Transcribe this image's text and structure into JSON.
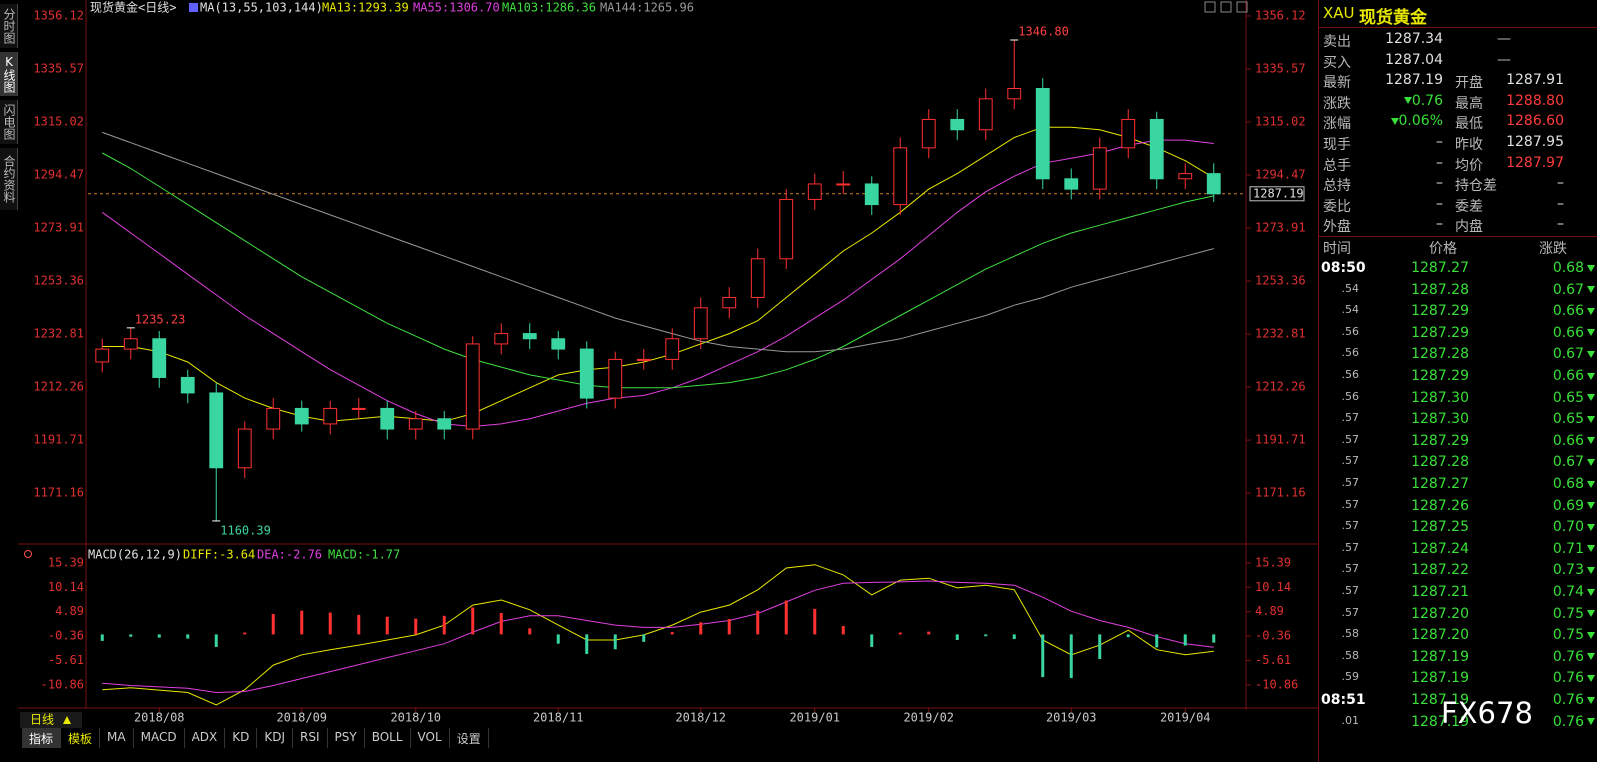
{
  "sidebar": {
    "tabs": [
      "分时图",
      "K线图",
      "闪电图",
      "合约资料"
    ]
  },
  "chart_data": {
    "type": "candlestick",
    "title": "现货黄金<日线>",
    "indicator_label": "MA(13,55,103,144)",
    "categories": [
      null,
      null,
      "2018/08",
      null,
      null,
      null,
      null,
      "2018/09",
      null,
      null,
      null,
      "2018/10",
      null,
      null,
      null,
      null,
      "2018/11",
      null,
      null,
      null,
      null,
      "2018/12",
      null,
      null,
      null,
      "2019/01",
      null,
      null,
      null,
      "2019/02",
      null,
      null,
      null,
      null,
      "2019/03",
      null,
      null,
      null,
      "2019/04",
      null
    ],
    "open": [
      1222,
      1227,
      1231,
      1216,
      1210,
      1181,
      1196,
      1204,
      1198,
      1204,
      1204,
      1196,
      1200,
      1196,
      1229,
      1233,
      1231,
      1227,
      1208,
      1223,
      1223,
      1231,
      1243,
      1247,
      1262,
      1285,
      1291,
      1291,
      1283,
      1305,
      1316,
      1312,
      1324,
      1328,
      1293,
      1289,
      1305,
      1316,
      1293,
      1295
    ],
    "high": [
      1231,
      1235.23,
      1234,
      1219,
      1214,
      1199,
      1208,
      1207,
      1207,
      1208,
      1207,
      1203,
      1203,
      1232,
      1237,
      1237,
      1234,
      1230,
      1226,
      1227,
      1235,
      1247,
      1251,
      1266,
      1289,
      1295,
      1296,
      1294,
      1309,
      1320,
      1320,
      1328,
      1346.8,
      1332,
      1297,
      1309,
      1320,
      1319,
      1299,
      1299
    ],
    "low": [
      1218,
      1223,
      1212,
      1206,
      1160.39,
      1177,
      1192,
      1195,
      1194,
      1200,
      1192,
      1192,
      1192,
      1192,
      1225,
      1227,
      1223,
      1204,
      1204,
      1219,
      1219,
      1227,
      1239,
      1243,
      1258,
      1281,
      1287,
      1279,
      1279,
      1301,
      1308,
      1308,
      1320,
      1289,
      1285,
      1285,
      1301,
      1289,
      1289,
      1284
    ],
    "close": [
      1227,
      1231,
      1216,
      1210,
      1181,
      1196,
      1204,
      1198,
      1204,
      1204,
      1196,
      1200,
      1196,
      1229,
      1233,
      1231,
      1227,
      1208,
      1223,
      1223,
      1231,
      1243,
      1247,
      1262,
      1285,
      1291,
      1291,
      1283,
      1305,
      1316,
      1312,
      1324,
      1328,
      1293,
      1289,
      1305,
      1316,
      1293,
      1295,
      1287.19
    ],
    "up_color": "#ff3030",
    "down_color": "#3ad6a2",
    "ylim": [
      1153.0,
      1359.2
    ],
    "yticks": [
      1356.12,
      1335.57,
      1315.02,
      1294.47,
      1273.91,
      1253.36,
      1232.81,
      1212.26,
      1191.71,
      1171.16
    ],
    "series": [
      {
        "name": "MA13:1293.39",
        "color": "#e8e800",
        "values": [
          1228,
          1228,
          1226,
          1222,
          1214,
          1208,
          1204,
          1201,
          1199,
          1200,
          1201,
          1200,
          1199,
          1202,
          1207,
          1212,
          1217,
          1219,
          1220,
          1222,
          1225,
          1229,
          1233,
          1238,
          1247,
          1256,
          1265,
          1272,
          1280,
          1289,
          1295,
          1302,
          1309,
          1313,
          1313,
          1312,
          1309,
          1305,
          1300,
          1293.39
        ]
      },
      {
        "name": "MA55:1306.70",
        "color": "#e040e0",
        "values": [
          1280,
          1272,
          1264,
          1256,
          1248,
          1240,
          1233,
          1226,
          1219,
          1213,
          1207,
          1202,
          1198,
          1197,
          1198,
          1200,
          1203,
          1206,
          1208,
          1209,
          1212,
          1216,
          1221,
          1226,
          1232,
          1239,
          1246,
          1254,
          1262,
          1271,
          1280,
          1288,
          1294,
          1299,
          1301,
          1303,
          1306,
          1308,
          1308,
          1306.7
        ]
      },
      {
        "name": "MA103:1286.36",
        "color": "#40e040",
        "values": [
          1303,
          1297,
          1290,
          1283,
          1276,
          1269,
          1262,
          1255,
          1249,
          1243,
          1237,
          1232,
          1227,
          1223,
          1220,
          1217,
          1215,
          1213,
          1212,
          1212,
          1212,
          1213,
          1214,
          1216,
          1219,
          1223,
          1228,
          1234,
          1240,
          1246,
          1252,
          1258,
          1263,
          1268,
          1272,
          1275,
          1278,
          1281,
          1284,
          1286.36
        ]
      },
      {
        "name": "MA144:1265.96",
        "color": "#999999",
        "values": [
          1311,
          1307,
          1303,
          1299,
          1295,
          1291,
          1287,
          1283,
          1279,
          1275,
          1271,
          1267,
          1263,
          1259,
          1255,
          1251,
          1247,
          1243,
          1239,
          1236,
          1233,
          1230,
          1228,
          1227,
          1226,
          1226,
          1227,
          1229,
          1231,
          1234,
          1237,
          1240,
          1244,
          1247,
          1251,
          1254,
          1257,
          1260,
          1263,
          1265.96
        ]
      }
    ],
    "annotations": [
      {
        "value": 1346.8,
        "label": "1346.80"
      },
      {
        "value": 1235.23,
        "label": "1235.23"
      },
      {
        "value": 1160.39,
        "label": "1160.39"
      }
    ],
    "macd": {
      "title": "MACD(26,12,9)",
      "ylim": [
        -15.2,
        18.6
      ],
      "yticks": [
        15.39,
        10.14,
        4.89,
        -0.36,
        -5.61,
        -10.86
      ],
      "series": [
        {
          "name": "DIFF:-3.64",
          "color": "#e8e800",
          "values": [
            -11.9,
            -11.5,
            -12.0,
            -12.5,
            -15.2,
            -11.9,
            -6.6,
            -4.4,
            -3.3,
            -2.3,
            -1.2,
            -0.1,
            2.0,
            6.3,
            7.4,
            5.3,
            2.0,
            -1.2,
            -1.2,
            -0.1,
            2.0,
            4.8,
            6.3,
            9.6,
            14.3,
            15.0,
            12.8,
            8.5,
            11.7,
            12.1,
            10.0,
            10.6,
            9.6,
            -1.2,
            -4.4,
            -2.3,
            0.9,
            -3.3,
            -4.4,
            -3.64
          ]
        },
        {
          "name": "DEA:-2.76",
          "color": "#e040e0",
          "values": [
            -10.5,
            -11.0,
            -11.3,
            -11.6,
            -12.5,
            -12.3,
            -11.0,
            -9.5,
            -8.0,
            -6.5,
            -5.0,
            -3.5,
            -2.0,
            0.5,
            2.8,
            4.0,
            4.0,
            3.0,
            2.0,
            1.5,
            1.5,
            2.2,
            3.0,
            4.5,
            7.0,
            9.5,
            11.0,
            11.2,
            11.3,
            11.5,
            11.2,
            11.0,
            10.6,
            8.0,
            5.0,
            3.0,
            1.5,
            -0.5,
            -2.0,
            -2.76
          ]
        },
        {
          "name": "MACD:-1.77",
          "color": "#40e040",
          "type": "bar",
          "values": [
            -1.4,
            -0.5,
            -0.7,
            -0.9,
            -2.7,
            0.4,
            4.4,
            5.1,
            4.7,
            4.2,
            3.8,
            3.4,
            4.0,
            5.8,
            4.6,
            1.3,
            -2.0,
            -4.2,
            -3.2,
            -1.6,
            0.5,
            2.6,
            3.3,
            5.1,
            7.3,
            5.5,
            1.8,
            -2.7,
            0.4,
            0.6,
            -1.2,
            -0.4,
            -1.0,
            -9.2,
            -9.4,
            -5.3,
            -0.6,
            -2.8,
            -2.4,
            -1.77
          ]
        }
      ]
    }
  },
  "period": "日线",
  "toolbar": [
    "指标",
    "模板",
    "MA",
    "MACD",
    "ADX",
    "KD",
    "KDJ",
    "RSI",
    "PSY",
    "BOLL",
    "VOL",
    "设置"
  ],
  "quote": {
    "code": "XAU",
    "name": "现货黄金",
    "rows": [
      [
        "卖出",
        "1287.34",
        "—"
      ],
      [
        "买入",
        "1287.04",
        "—"
      ],
      [
        "最新",
        "1287.19",
        "开盘",
        "1287.91"
      ],
      [
        "涨跌",
        "0.76",
        "最高",
        "1288.80"
      ],
      [
        "涨幅",
        "0.06%",
        "最低",
        "1286.60"
      ],
      [
        "现手",
        "–",
        "昨收",
        "1287.95"
      ],
      [
        "总手",
        "–",
        "均价",
        "1287.97"
      ],
      [
        "总持",
        "–",
        "持仓差",
        "–"
      ],
      [
        "委比",
        "–",
        "委差",
        "–"
      ],
      [
        "外盘",
        "–",
        "内盘",
        "–"
      ]
    ]
  },
  "ticks": {
    "header": [
      "时间",
      "价格",
      "涨跌"
    ],
    "rows": [
      [
        "08:50",
        "1287.27",
        "0.68"
      ],
      [
        ".54",
        "1287.28",
        "0.67"
      ],
      [
        ".54",
        "1287.29",
        "0.66"
      ],
      [
        ".56",
        "1287.29",
        "0.66"
      ],
      [
        ".56",
        "1287.28",
        "0.67"
      ],
      [
        ".56",
        "1287.29",
        "0.66"
      ],
      [
        ".56",
        "1287.30",
        "0.65"
      ],
      [
        ".57",
        "1287.30",
        "0.65"
      ],
      [
        ".57",
        "1287.29",
        "0.66"
      ],
      [
        ".57",
        "1287.28",
        "0.67"
      ],
      [
        ".57",
        "1287.27",
        "0.68"
      ],
      [
        ".57",
        "1287.26",
        "0.69"
      ],
      [
        ".57",
        "1287.25",
        "0.70"
      ],
      [
        ".57",
        "1287.24",
        "0.71"
      ],
      [
        ".57",
        "1287.22",
        "0.73"
      ],
      [
        ".57",
        "1287.21",
        "0.74"
      ],
      [
        ".57",
        "1287.20",
        "0.75"
      ],
      [
        ".58",
        "1287.20",
        "0.75"
      ],
      [
        ".58",
        "1287.19",
        "0.76"
      ],
      [
        ".59",
        "1287.19",
        "0.76"
      ],
      [
        "08:51",
        "1287.19",
        "0.76"
      ],
      [
        ".01",
        "1287.19",
        "0.76"
      ]
    ]
  },
  "watermark": "FX678"
}
